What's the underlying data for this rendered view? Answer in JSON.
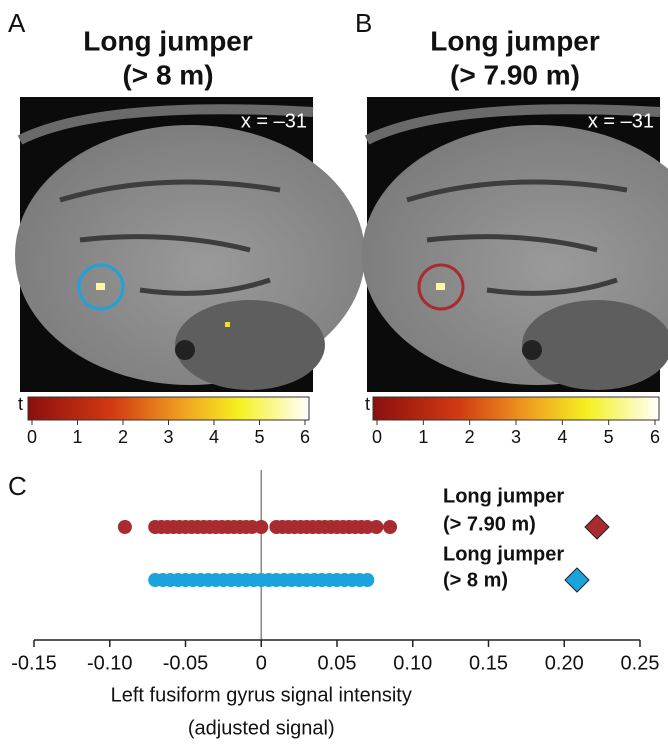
{
  "panels": [
    {
      "label": "A",
      "title": [
        "Long jumper",
        "(> 8 m)"
      ],
      "coordinate": "x = –31",
      "circle_color": "#1ba3dc",
      "colorbar": {
        "label": "t",
        "ticks": [
          0,
          1,
          2,
          3,
          4,
          5,
          6
        ]
      }
    },
    {
      "label": "B",
      "title": [
        "Long jumper",
        "(> 7.90 m)"
      ],
      "coordinate": "x = –31",
      "circle_color": "#a82b2f",
      "colorbar": {
        "label": "t",
        "ticks": [
          0,
          1,
          2,
          3,
          4,
          5,
          6
        ]
      }
    }
  ],
  "chart_data": {
    "type": "strip",
    "panel_label": "C",
    "xlabel": [
      "Left fusiform gyrus signal intensity",
      "(adjusted signal)"
    ],
    "xlim": [
      -0.15,
      0.25
    ],
    "xticks": [
      -0.15,
      {
        "value": -0.1,
        "label": "-0.10"
      },
      -0.05,
      0,
      0.05,
      {
        "value": 0.1,
        "label": "0.10"
      },
      0.15,
      {
        "value": 0.2,
        "label": "0.20"
      },
      0.25
    ],
    "series": [
      {
        "name": [
          "Long jumper",
          "(> 7.90 m)"
        ],
        "color": "#a82b2f",
        "values": [
          -0.09,
          -0.07,
          -0.066,
          -0.062,
          -0.058,
          -0.054,
          -0.05,
          -0.046,
          -0.042,
          -0.038,
          -0.034,
          -0.03,
          -0.026,
          -0.022,
          -0.018,
          -0.014,
          -0.01,
          -0.006,
          0,
          0.01,
          0.014,
          0.018,
          0.022,
          0.026,
          0.03,
          0.034,
          0.038,
          0.042,
          0.046,
          0.05,
          0.054,
          0.058,
          0.062,
          0.066,
          0.07,
          0.076,
          0.085
        ]
      },
      {
        "name": [
          "Long jumper",
          "(> 8 m)"
        ],
        "color": "#1ba3dc",
        "values": [
          -0.07,
          -0.065,
          -0.06,
          -0.055,
          -0.05,
          -0.045,
          -0.04,
          -0.035,
          -0.03,
          -0.025,
          -0.02,
          -0.015,
          -0.01,
          -0.005,
          0,
          0.005,
          0.01,
          0.015,
          0.02,
          0.025,
          0.03,
          0.035,
          0.04,
          0.045,
          0.05,
          0.055,
          0.06,
          0.065,
          0.07
        ]
      }
    ]
  }
}
